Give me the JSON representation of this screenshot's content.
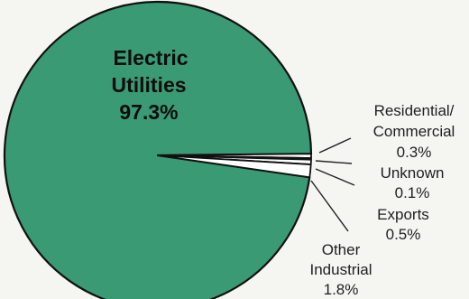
{
  "chart_data": {
    "type": "pie",
    "title": "",
    "slices": [
      {
        "name_lines": [
          "Electric",
          "Utilities"
        ],
        "value": 97.3,
        "value_label": "97.3%",
        "color": "#3a9a73"
      },
      {
        "name_lines": [
          "Residential/",
          "Commercial"
        ],
        "value": 0.3,
        "value_label": "0.3%",
        "color": "#ffffff"
      },
      {
        "name_lines": [
          "Unknown"
        ],
        "value": 0.1,
        "value_label": "0.1%",
        "color": "#ffffff"
      },
      {
        "name_lines": [
          "Exports"
        ],
        "value": 0.5,
        "value_label": "0.5%",
        "color": "#ffffff"
      },
      {
        "name_lines": [
          "Other",
          "Industrial"
        ],
        "value": 1.8,
        "value_label": "1.8%",
        "color": "#ffffff"
      }
    ],
    "legend": "none",
    "label_style": "outside labels with leader lines; largest slice labelled inside"
  }
}
